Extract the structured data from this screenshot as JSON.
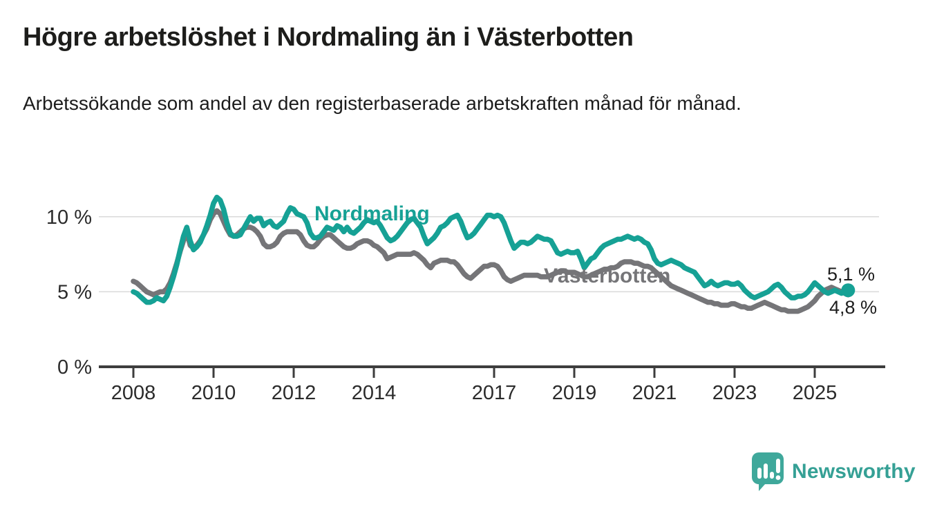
{
  "header": {
    "title": "Högre arbetslöshet i Nordmaling än i Västerbotten",
    "subtitle": "Arbetssökande som andel av den registerbaserade arbetskraften månad för månad."
  },
  "chart_data": {
    "type": "line",
    "unit": "%",
    "frequency": "monthly",
    "x_start": "2008-01",
    "x_end": "2025-11",
    "grid": "horizontal",
    "legend_position": "inline-labels",
    "ylim": [
      0,
      11.6
    ],
    "x_ticks": [
      2008,
      2010,
      2012,
      2014,
      2017,
      2019,
      2021,
      2023,
      2025
    ],
    "y_ticks": [
      0,
      5,
      10
    ],
    "y_tick_labels": [
      "0 %",
      "5 %",
      "10 %"
    ],
    "colors": {
      "grid": "#d9d9d9",
      "axis": "#3d3d3d",
      "tick_text": "#2b2b2b",
      "end_label_text": "#1d1d1d"
    },
    "series": [
      {
        "name": "Nordmaling",
        "color": "#16a195",
        "end_label": "5,1 %",
        "end_value": 5.1,
        "end_dot": true,
        "values": [
          5.0,
          4.9,
          4.7,
          4.5,
          4.3,
          4.3,
          4.4,
          4.6,
          4.5,
          4.4,
          4.7,
          5.3,
          6.0,
          6.8,
          7.8,
          8.7,
          9.3,
          8.4,
          7.8,
          8.0,
          8.3,
          8.8,
          9.4,
          10.1,
          10.9,
          11.3,
          11.1,
          10.5,
          9.6,
          8.9,
          8.7,
          8.7,
          8.8,
          9.2,
          9.6,
          10.0,
          9.7,
          9.9,
          9.9,
          9.4,
          9.6,
          9.7,
          9.4,
          9.3,
          9.5,
          9.7,
          10.2,
          10.6,
          10.5,
          10.2,
          10.1,
          10.0,
          9.6,
          8.9,
          8.6,
          8.6,
          8.7,
          9.0,
          9.3,
          9.2,
          9.1,
          9.4,
          9.3,
          9.0,
          9.3,
          9.0,
          8.9,
          9.1,
          9.3,
          9.6,
          9.8,
          9.7,
          9.6,
          9.7,
          9.4,
          9.0,
          8.6,
          8.4,
          8.5,
          8.7,
          9.0,
          9.3,
          9.6,
          9.8,
          9.9,
          9.6,
          9.3,
          8.7,
          8.2,
          8.4,
          8.6,
          8.9,
          9.3,
          9.4,
          9.6,
          9.9,
          10.0,
          10.1,
          9.7,
          9.1,
          8.6,
          8.7,
          8.9,
          9.2,
          9.5,
          9.8,
          10.1,
          10.1,
          10.0,
          10.1,
          10.0,
          9.6,
          9.0,
          8.4,
          7.9,
          8.1,
          8.3,
          8.3,
          8.2,
          8.3,
          8.5,
          8.7,
          8.6,
          8.5,
          8.5,
          8.4,
          8.0,
          7.6,
          7.5,
          7.6,
          7.7,
          7.6,
          7.6,
          7.7,
          7.2,
          6.6,
          6.9,
          7.2,
          7.3,
          7.6,
          7.9,
          8.1,
          8.2,
          8.3,
          8.4,
          8.5,
          8.5,
          8.6,
          8.7,
          8.6,
          8.5,
          8.6,
          8.5,
          8.3,
          8.2,
          7.8,
          7.2,
          6.9,
          6.8,
          6.9,
          7.0,
          7.1,
          7.0,
          6.9,
          6.8,
          6.6,
          6.5,
          6.4,
          6.3,
          6.0,
          5.7,
          5.4,
          5.5,
          5.7,
          5.5,
          5.4,
          5.5,
          5.6,
          5.6,
          5.5,
          5.5,
          5.6,
          5.4,
          5.1,
          4.9,
          4.7,
          4.6,
          4.7,
          4.8,
          4.9,
          5.0,
          5.2,
          5.4,
          5.5,
          5.3,
          5.0,
          4.8,
          4.6,
          4.6,
          4.7,
          4.7,
          4.8,
          5.0,
          5.3,
          5.6,
          5.4,
          5.2,
          5.0,
          4.9,
          5.0,
          5.1,
          5.0,
          4.9,
          5.0,
          5.1
        ]
      },
      {
        "name": "Västerbotten",
        "color": "#757578",
        "end_label": "4,8 %",
        "end_value": 4.8,
        "end_dot": false,
        "values": [
          5.7,
          5.6,
          5.4,
          5.2,
          5.0,
          4.9,
          4.8,
          4.9,
          5.0,
          5.0,
          5.2,
          5.6,
          6.2,
          6.9,
          7.7,
          8.4,
          9.0,
          8.1,
          7.9,
          8.1,
          8.4,
          8.8,
          9.2,
          9.8,
          10.2,
          10.4,
          10.2,
          9.7,
          9.2,
          8.8,
          8.7,
          8.8,
          9.0,
          9.2,
          9.3,
          9.3,
          9.2,
          9.0,
          8.7,
          8.2,
          8.0,
          8.0,
          8.1,
          8.3,
          8.7,
          8.9,
          9.0,
          9.0,
          9.0,
          9.0,
          8.8,
          8.4,
          8.1,
          8.0,
          8.0,
          8.2,
          8.5,
          8.7,
          8.8,
          8.8,
          8.6,
          8.4,
          8.2,
          8.0,
          7.9,
          7.9,
          8.0,
          8.2,
          8.3,
          8.4,
          8.4,
          8.3,
          8.1,
          8.0,
          7.8,
          7.6,
          7.2,
          7.3,
          7.4,
          7.5,
          7.5,
          7.5,
          7.5,
          7.5,
          7.6,
          7.5,
          7.3,
          7.1,
          6.8,
          6.6,
          6.9,
          7.0,
          7.1,
          7.1,
          7.1,
          7.0,
          7.0,
          6.8,
          6.5,
          6.2,
          6.0,
          5.9,
          6.1,
          6.3,
          6.5,
          6.7,
          6.7,
          6.8,
          6.8,
          6.7,
          6.4,
          6.0,
          5.8,
          5.7,
          5.8,
          5.9,
          6.0,
          6.1,
          6.1,
          6.1,
          6.1,
          6.1,
          6.0,
          6.0,
          6.0,
          6.1,
          6.2,
          6.3,
          6.4,
          6.4,
          6.3,
          6.3,
          6.3,
          6.2,
          6.1,
          6.0,
          6.0,
          6.1,
          6.2,
          6.3,
          6.4,
          6.5,
          6.5,
          6.6,
          6.6,
          6.7,
          6.9,
          7.0,
          7.0,
          7.0,
          6.9,
          6.9,
          6.8,
          6.7,
          6.7,
          6.6,
          6.4,
          6.2,
          6.0,
          5.8,
          5.6,
          5.4,
          5.3,
          5.2,
          5.1,
          5.0,
          4.9,
          4.8,
          4.7,
          4.6,
          4.5,
          4.4,
          4.3,
          4.3,
          4.2,
          4.2,
          4.1,
          4.1,
          4.1,
          4.2,
          4.2,
          4.1,
          4.0,
          4.0,
          3.9,
          3.9,
          4.0,
          4.1,
          4.2,
          4.3,
          4.2,
          4.1,
          4.0,
          3.9,
          3.8,
          3.8,
          3.7,
          3.7,
          3.7,
          3.7,
          3.8,
          3.9,
          4.0,
          4.2,
          4.4,
          4.7,
          4.9,
          5.1,
          5.2,
          5.3,
          5.2,
          5.1,
          5.0,
          4.9,
          4.8
        ]
      }
    ]
  },
  "branding": {
    "name": "Newsworthy"
  }
}
